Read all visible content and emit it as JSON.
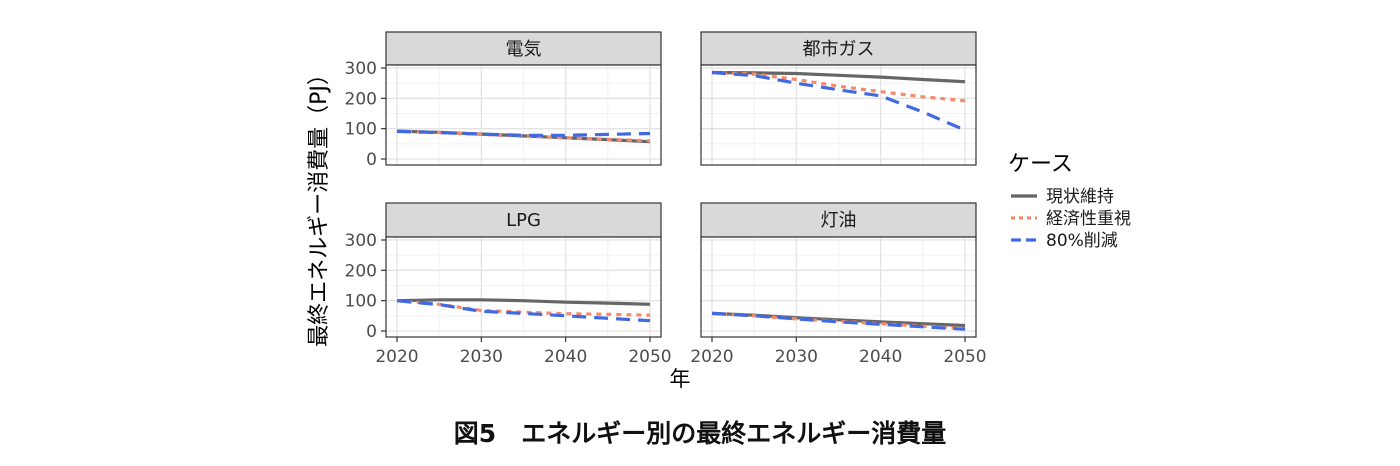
{
  "caption": "図5　エネルギー別の最終エネルギー消費量",
  "colors": {
    "現状維持": "#666666",
    "経済性重視": "#F4896B",
    "80%削減": "#4169E1",
    "strip": "#D9D9D9"
  },
  "chart_data": {
    "type": "line",
    "facet": true,
    "xlabel": "年",
    "ylabel": "最終エネルギー消費量（PJ）",
    "xlim": [
      2020,
      2050
    ],
    "ylim": [
      0,
      300
    ],
    "xticks": [
      2020,
      2030,
      2040,
      2050
    ],
    "yticks": [
      0,
      100,
      200,
      300
    ],
    "legend_title": "ケース",
    "legend_placement": "right",
    "grid": true,
    "x": [
      2020,
      2025,
      2030,
      2035,
      2040,
      2045,
      2050
    ],
    "panels": [
      {
        "name": "電気",
        "series": [
          {
            "name": "現状維持",
            "values": [
              92,
              88,
              82,
              76,
              70,
              64,
              57
            ]
          },
          {
            "name": "経済性重視",
            "values": [
              91,
              87,
              81,
              75,
              70,
              65,
              60
            ]
          },
          {
            "name": "80%削減",
            "values": [
              91,
              87,
              82,
              78,
              78,
              81,
              84
            ]
          }
        ]
      },
      {
        "name": "都市ガス",
        "series": [
          {
            "name": "現状維持",
            "values": [
              285,
              284,
              282,
              276,
              270,
              262,
              255
            ]
          },
          {
            "name": "経済性重視",
            "values": [
              285,
              280,
              262,
              240,
              222,
              205,
              192
            ]
          },
          {
            "name": "80%削減",
            "values": [
              285,
              275,
              250,
              228,
              208,
              155,
              95
            ]
          }
        ]
      },
      {
        "name": "LPG",
        "series": [
          {
            "name": "現状維持",
            "values": [
              100,
              103,
              103,
              100,
              95,
              92,
              88
            ]
          },
          {
            "name": "経済性重視",
            "values": [
              100,
              88,
              68,
              62,
              57,
              55,
              52
            ]
          },
          {
            "name": "80%削減",
            "values": [
              100,
              87,
              65,
              58,
              50,
              42,
              34
            ]
          }
        ]
      },
      {
        "name": "灯油",
        "series": [
          {
            "name": "現状維持",
            "values": [
              58,
              52,
              44,
              37,
              30,
              24,
              18
            ]
          },
          {
            "name": "経済性重視",
            "values": [
              58,
              50,
              40,
              32,
              24,
              16,
              8
            ]
          },
          {
            "name": "80%削減",
            "values": [
              58,
              50,
              40,
              30,
              22,
              14,
              6
            ]
          }
        ]
      }
    ]
  }
}
